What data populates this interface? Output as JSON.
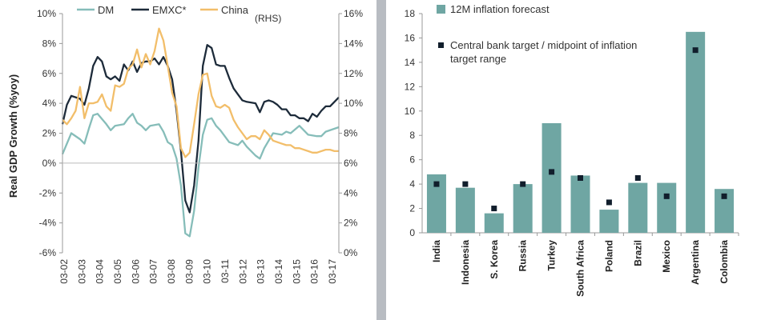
{
  "chart_data": [
    {
      "type": "line",
      "ylabel": "Real GDP Growth (%yoy)",
      "y_ticks": [
        "10%",
        "8%",
        "6%",
        "4%",
        "2%",
        "0%",
        "-2%",
        "-4%",
        "-6%"
      ],
      "y2_ticks": [
        "16%",
        "14%",
        "12%",
        "10%",
        "8%",
        "6%",
        "4%",
        "2%",
        "0%"
      ],
      "ylim": [
        -6,
        10
      ],
      "y2lim": [
        0,
        16
      ],
      "x_ticks": [
        "03-02",
        "03-03",
        "03-04",
        "03-05",
        "03-06",
        "03-07",
        "03-08",
        "03-09",
        "03-10",
        "03-11",
        "03-12",
        "03-13",
        "03-14",
        "03-15",
        "03-16",
        "03-17"
      ],
      "x_range": [
        2002.0,
        2017.75
      ],
      "legend": {
        "placement": "top",
        "entries": [
          "DM",
          "EMXC*",
          "China"
        ],
        "rhs_note": "(RHS)"
      },
      "series": [
        {
          "name": "DM",
          "color": "#86bdb9",
          "axis": "left",
          "points": [
            [
              2002.0,
              0.6
            ],
            [
              2002.5,
              2.0
            ],
            [
              2003.0,
              1.6
            ],
            [
              2003.25,
              1.3
            ],
            [
              2003.5,
              2.3
            ],
            [
              2003.75,
              3.2
            ],
            [
              2004.0,
              3.3
            ],
            [
              2004.5,
              2.6
            ],
            [
              2004.75,
              2.2
            ],
            [
              2005.0,
              2.5
            ],
            [
              2005.5,
              2.6
            ],
            [
              2005.75,
              3.0
            ],
            [
              2006.0,
              3.3
            ],
            [
              2006.25,
              2.7
            ],
            [
              2006.5,
              2.5
            ],
            [
              2006.75,
              2.2
            ],
            [
              2007.0,
              2.5
            ],
            [
              2007.5,
              2.6
            ],
            [
              2007.75,
              2.1
            ],
            [
              2008.0,
              1.4
            ],
            [
              2008.25,
              1.2
            ],
            [
              2008.5,
              0.3
            ],
            [
              2008.75,
              -1.5
            ],
            [
              2009.0,
              -4.7
            ],
            [
              2009.25,
              -4.9
            ],
            [
              2009.5,
              -3.2
            ],
            [
              2009.75,
              -0.3
            ],
            [
              2010.0,
              1.9
            ],
            [
              2010.25,
              2.9
            ],
            [
              2010.5,
              3.0
            ],
            [
              2010.75,
              2.5
            ],
            [
              2011.0,
              2.2
            ],
            [
              2011.5,
              1.4
            ],
            [
              2012.0,
              1.2
            ],
            [
              2012.25,
              1.5
            ],
            [
              2012.5,
              1.1
            ],
            [
              2013.0,
              0.5
            ],
            [
              2013.25,
              0.3
            ],
            [
              2013.5,
              1.0
            ],
            [
              2014.0,
              2.0
            ],
            [
              2014.5,
              1.9
            ],
            [
              2014.75,
              2.1
            ],
            [
              2015.0,
              2.0
            ],
            [
              2015.5,
              2.5
            ],
            [
              2016.0,
              1.9
            ],
            [
              2016.5,
              1.8
            ],
            [
              2016.75,
              1.8
            ],
            [
              2017.0,
              2.1
            ],
            [
              2017.5,
              2.3
            ],
            [
              2017.75,
              2.4
            ]
          ]
        },
        {
          "name": "EMXC*",
          "color": "#1d2b3a",
          "axis": "left",
          "points": [
            [
              2002.0,
              2.6
            ],
            [
              2002.25,
              3.9
            ],
            [
              2002.5,
              4.5
            ],
            [
              2003.0,
              4.3
            ],
            [
              2003.25,
              3.9
            ],
            [
              2003.5,
              5.0
            ],
            [
              2003.75,
              6.5
            ],
            [
              2004.0,
              7.1
            ],
            [
              2004.25,
              6.8
            ],
            [
              2004.5,
              5.8
            ],
            [
              2004.75,
              5.6
            ],
            [
              2005.0,
              5.8
            ],
            [
              2005.25,
              5.5
            ],
            [
              2005.5,
              6.6
            ],
            [
              2005.75,
              6.2
            ],
            [
              2006.0,
              6.8
            ],
            [
              2006.25,
              6.1
            ],
            [
              2006.5,
              6.7
            ],
            [
              2006.75,
              6.8
            ],
            [
              2007.0,
              6.8
            ],
            [
              2007.25,
              7.0
            ],
            [
              2007.5,
              6.6
            ],
            [
              2007.75,
              7.1
            ],
            [
              2008.0,
              6.5
            ],
            [
              2008.25,
              5.6
            ],
            [
              2008.5,
              3.5
            ],
            [
              2008.75,
              0.8
            ],
            [
              2009.0,
              -2.5
            ],
            [
              2009.25,
              -3.3
            ],
            [
              2009.5,
              -1.5
            ],
            [
              2009.75,
              1.5
            ],
            [
              2010.0,
              6.5
            ],
            [
              2010.25,
              7.9
            ],
            [
              2010.5,
              7.7
            ],
            [
              2010.75,
              6.6
            ],
            [
              2011.0,
              6.5
            ],
            [
              2011.25,
              6.5
            ],
            [
              2011.5,
              5.7
            ],
            [
              2011.75,
              5.0
            ],
            [
              2012.0,
              4.6
            ],
            [
              2012.25,
              4.2
            ],
            [
              2012.5,
              4.1
            ],
            [
              2013.0,
              4.0
            ],
            [
              2013.25,
              3.4
            ],
            [
              2013.5,
              4.1
            ],
            [
              2013.75,
              4.2
            ],
            [
              2014.0,
              4.1
            ],
            [
              2014.25,
              3.9
            ],
            [
              2014.5,
              3.6
            ],
            [
              2014.75,
              3.6
            ],
            [
              2015.0,
              3.2
            ],
            [
              2015.25,
              3.2
            ],
            [
              2015.5,
              3.0
            ],
            [
              2015.75,
              3.0
            ],
            [
              2016.0,
              2.8
            ],
            [
              2016.25,
              3.3
            ],
            [
              2016.5,
              3.1
            ],
            [
              2016.75,
              3.5
            ],
            [
              2017.0,
              3.8
            ],
            [
              2017.25,
              3.8
            ],
            [
              2017.5,
              4.1
            ],
            [
              2017.75,
              4.4
            ]
          ]
        },
        {
          "name": "China",
          "color": "#f2be6a",
          "axis": "right",
          "points": [
            [
              2002.0,
              8.9
            ],
            [
              2002.25,
              8.6
            ],
            [
              2002.5,
              9.0
            ],
            [
              2002.75,
              9.5
            ],
            [
              2003.0,
              11.1
            ],
            [
              2003.25,
              9.0
            ],
            [
              2003.5,
              10.0
            ],
            [
              2003.75,
              10.0
            ],
            [
              2004.0,
              10.1
            ],
            [
              2004.25,
              10.6
            ],
            [
              2004.5,
              9.8
            ],
            [
              2004.75,
              9.5
            ],
            [
              2005.0,
              11.2
            ],
            [
              2005.25,
              11.1
            ],
            [
              2005.5,
              11.3
            ],
            [
              2005.75,
              12.3
            ],
            [
              2006.0,
              12.6
            ],
            [
              2006.25,
              13.6
            ],
            [
              2006.5,
              12.4
            ],
            [
              2006.75,
              13.3
            ],
            [
              2007.0,
              12.6
            ],
            [
              2007.25,
              13.5
            ],
            [
              2007.5,
              15.0
            ],
            [
              2007.75,
              14.2
            ],
            [
              2008.0,
              12.5
            ],
            [
              2008.25,
              10.7
            ],
            [
              2008.5,
              9.8
            ],
            [
              2008.75,
              7.0
            ],
            [
              2009.0,
              6.4
            ],
            [
              2009.25,
              6.7
            ],
            [
              2009.5,
              8.6
            ],
            [
              2009.75,
              10.6
            ],
            [
              2010.0,
              11.9
            ],
            [
              2010.25,
              12.0
            ],
            [
              2010.5,
              10.5
            ],
            [
              2010.75,
              9.8
            ],
            [
              2011.0,
              9.7
            ],
            [
              2011.25,
              9.9
            ],
            [
              2011.5,
              9.7
            ],
            [
              2011.75,
              8.9
            ],
            [
              2012.0,
              8.4
            ],
            [
              2012.25,
              8.0
            ],
            [
              2012.5,
              7.6
            ],
            [
              2012.75,
              7.8
            ],
            [
              2013.0,
              7.8
            ],
            [
              2013.25,
              7.6
            ],
            [
              2013.5,
              8.2
            ],
            [
              2013.75,
              7.9
            ],
            [
              2014.0,
              7.5
            ],
            [
              2014.25,
              7.4
            ],
            [
              2014.5,
              7.3
            ],
            [
              2014.75,
              7.2
            ],
            [
              2015.0,
              7.2
            ],
            [
              2015.25,
              7.0
            ],
            [
              2015.5,
              7.0
            ],
            [
              2015.75,
              6.9
            ],
            [
              2016.0,
              6.8
            ],
            [
              2016.25,
              6.7
            ],
            [
              2016.5,
              6.7
            ],
            [
              2016.75,
              6.8
            ],
            [
              2017.0,
              6.9
            ],
            [
              2017.25,
              6.9
            ],
            [
              2017.5,
              6.8
            ],
            [
              2017.75,
              6.8
            ]
          ]
        }
      ]
    },
    {
      "type": "bar",
      "categories": [
        "India",
        "Indonesia",
        "S. Korea",
        "Russia",
        "Turkey",
        "South Africa",
        "Poland",
        "Brazil",
        "Mexico",
        "Argentina",
        "Colombia"
      ],
      "ylim": [
        0,
        18
      ],
      "y_ticks": [
        "0",
        "2",
        "4",
        "6",
        "8",
        "10",
        "12",
        "14",
        "16",
        "18"
      ],
      "legend": {
        "placement": "top-left"
      },
      "series": [
        {
          "name": "12M inflation forecast",
          "color": "#6fa6a3",
          "values": [
            4.8,
            3.7,
            1.6,
            4.0,
            9.0,
            4.7,
            1.9,
            4.1,
            4.1,
            16.5,
            3.6
          ]
        },
        {
          "name": "Central bank target / midpoint of inflation target range",
          "name_lines": [
            "Central bank target / midpoint of inflation",
            "target range"
          ],
          "color": "#111e2c",
          "marker": "square",
          "values": [
            4.0,
            4.0,
            2.0,
            4.0,
            5.0,
            4.5,
            2.5,
            4.5,
            3.0,
            15.0,
            3.0
          ]
        }
      ]
    }
  ]
}
